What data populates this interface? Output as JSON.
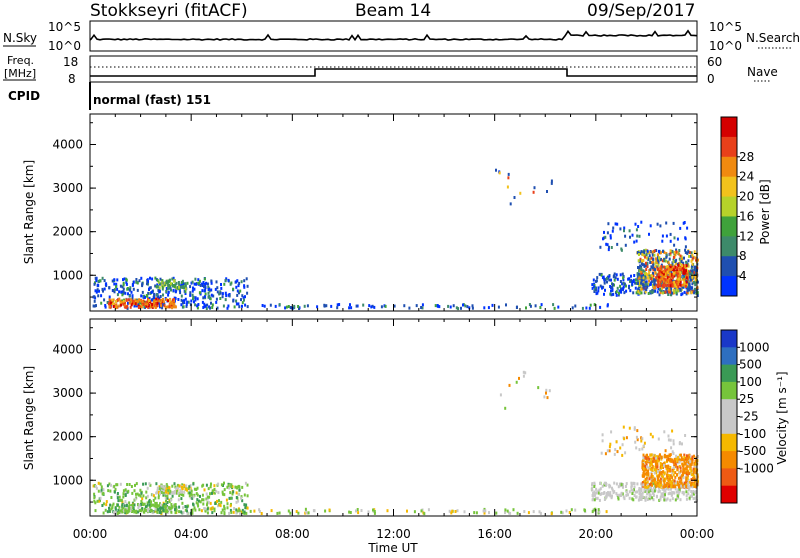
{
  "header": {
    "station": "Stokkseyri (fitACF)",
    "beam": "Beam 14",
    "date": "09/Sep/2017"
  },
  "strip_noise": {
    "left_label": "N.Sky",
    "left_ticks": [
      "10^5",
      "10^0"
    ],
    "right_ticks": [
      "10^5",
      "10^0"
    ],
    "right_label": "N.Search"
  },
  "strip_freq": {
    "left_label_1": "Freq.",
    "left_label_2": "[MHz]",
    "left_ticks": [
      "18",
      "8"
    ],
    "right_ticks": [
      "60",
      "0"
    ],
    "right_label": "Nave"
  },
  "strip_cpid": {
    "left_label": "CPID",
    "text": "normal (fast) 151"
  },
  "chart_data": [
    {
      "type": "heatmap",
      "panel": "power",
      "ylabel": "Slant Range [km]",
      "yticks": [
        "1000",
        "2000",
        "3000",
        "4000"
      ],
      "ylim": [
        180,
        4700
      ],
      "xlim_hours": [
        0,
        24
      ],
      "colorbar_label": "Power [dB]",
      "colorbar_ticks": [
        "4",
        "8",
        "12",
        "16",
        "20",
        "24",
        "28"
      ],
      "colorbar_colors": [
        "#0033ff",
        "#1f4fb0",
        "#3d8a6a",
        "#3fa23b",
        "#b6d22a",
        "#f2c21c",
        "#f08a10",
        "#e8401a",
        "#d40000"
      ]
    },
    {
      "type": "heatmap",
      "panel": "velocity",
      "ylabel": "Slant Range [km]",
      "yticks": [
        "1000",
        "2000",
        "3000",
        "4000"
      ],
      "ylim": [
        180,
        4700
      ],
      "xlim_hours": [
        0,
        24
      ],
      "colorbar_label": "Velocity [m s⁻¹]",
      "colorbar_ticks": [
        "1000",
        "500",
        "100",
        "25",
        "-25",
        "-100",
        "-500",
        "-1000"
      ],
      "colorbar_colors": [
        "#1a38c8",
        "#2e6fc0",
        "#3a9a55",
        "#76c43b",
        "#c8c8c8",
        "#c8c8c8",
        "#f5b800",
        "#f58a00",
        "#ee5a14",
        "#e00000"
      ]
    }
  ],
  "xaxis": {
    "ticks": [
      "00:00",
      "04:00",
      "08:00",
      "12:00",
      "16:00",
      "20:00",
      "00:00"
    ],
    "label": "Time UT"
  }
}
